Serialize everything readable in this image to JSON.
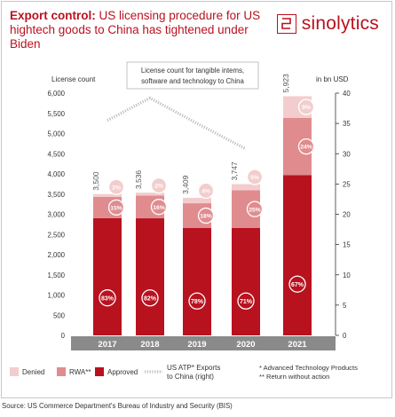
{
  "header": {
    "title_lead": "Export control:",
    "title_rest": " US licensing procedure for US hightech goods to China has tightened under Biden",
    "brand": "sinolytics"
  },
  "colors": {
    "brand": "#b8121f",
    "approved": "#b8121f",
    "rwa": "#e08c8f",
    "denied": "#f3cdcd",
    "atp_line": "#bdbdbd",
    "xbar": "#8a8a8a"
  },
  "chart_data": {
    "type": "bar",
    "stacked": true,
    "categories": [
      "2017",
      "2018",
      "2019",
      "2020",
      "2021"
    ],
    "totals": [
      "3,500",
      "3,536",
      "3,409",
      "3,747",
      "5,923"
    ],
    "series": [
      {
        "name": "Approved",
        "values": [
          2905,
          2900,
          2659,
          2660,
          3968
        ],
        "labels": [
          "83%",
          "82%",
          "78%",
          "71%",
          "67%"
        ]
      },
      {
        "name": "RWA**",
        "values": [
          525,
          566,
          614,
          937,
          1422
        ],
        "labels": [
          "15%",
          "16%",
          "18%",
          "25%",
          "24%"
        ]
      },
      {
        "name": "Denied",
        "values": [
          70,
          70,
          136,
          150,
          533
        ],
        "labels": [
          "2%",
          "2%",
          "4%",
          "5%",
          "9%"
        ]
      }
    ],
    "atp_series": {
      "name": "US ATP* Exports to China (right)",
      "values": [
        35.5,
        39.2,
        35.0,
        30.8
      ]
    },
    "ylabel_left": "License count",
    "ylabel_right": "in bn USD",
    "ylim_left": [
      0,
      6000
    ],
    "ylim_right": [
      0,
      40
    ],
    "yticks_left": [
      "0",
      "500",
      "1,000",
      "1,500",
      "2,000",
      "2,500",
      "3,000",
      "3,500",
      "4,000",
      "4,500",
      "5,000",
      "5,500",
      "6,000"
    ],
    "yticks_right": [
      "0",
      "5",
      "10",
      "15",
      "20",
      "25",
      "30",
      "35",
      "40"
    ],
    "annotation": "License count for tangible intems, software and technology to China",
    "legend": [
      {
        "key": "denied",
        "label": "Denied"
      },
      {
        "key": "rwa",
        "label": "RWA**"
      },
      {
        "key": "approved",
        "label": "Approved"
      },
      {
        "key": "atp",
        "label": "US ATP* Exports to China (right)"
      }
    ],
    "footnotes": [
      "* Advanced Technology Products",
      "** Return without action"
    ],
    "grid": false
  },
  "source": "Source: US Commerce Department's Bureau of Industry and Security (BIS)"
}
